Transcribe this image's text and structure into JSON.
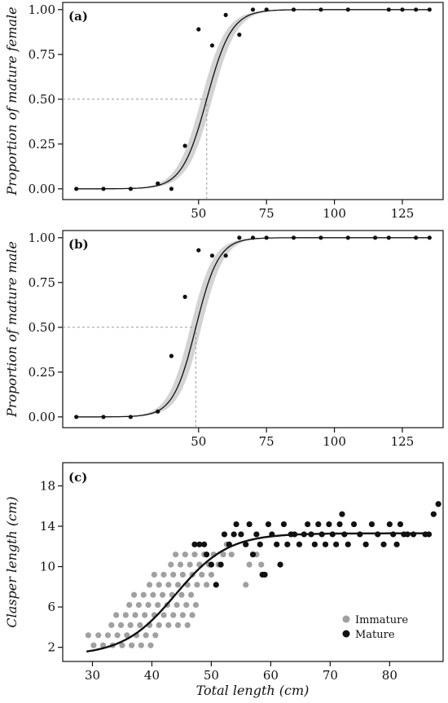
{
  "chart_data": [
    {
      "type": "scatter",
      "panel_label": "(a)",
      "ylabel": "Proportion of mature female",
      "xlabel": "",
      "xlim": [
        0,
        140
      ],
      "ylim": [
        -0.06,
        1.04
      ],
      "xticks": [
        50,
        75,
        100,
        125
      ],
      "yticks": [
        "0.00",
        "0.25",
        "0.50",
        "0.75",
        "1.00"
      ],
      "grid": false,
      "points": {
        "x": [
          5,
          15,
          25,
          35,
          40,
          45,
          50,
          55,
          60,
          65,
          70,
          75,
          85,
          95,
          105,
          120,
          125,
          130,
          135
        ],
        "y": [
          0,
          0,
          0,
          0.03,
          0,
          0.24,
          0.89,
          0.8,
          0.97,
          0.86,
          1,
          1,
          1,
          1,
          1,
          1,
          1,
          1,
          1
        ]
      },
      "fit_curve": {
        "model": "logistic",
        "L50": 53,
        "slope": 0.22
      },
      "confidence_band": {
        "lower_L50": 55,
        "upper_L50": 51
      },
      "reference": {
        "x": 53,
        "y": 0.5
      }
    },
    {
      "type": "scatter",
      "panel_label": "(b)",
      "ylabel": "Proportion of mature male",
      "xlabel": "",
      "xlim": [
        0,
        140
      ],
      "ylim": [
        -0.06,
        1.04
      ],
      "xticks": [
        50,
        75,
        100,
        125
      ],
      "yticks": [
        "0.00",
        "0.25",
        "0.50",
        "0.75",
        "1.00"
      ],
      "grid": false,
      "points": {
        "x": [
          5,
          15,
          25,
          35,
          40,
          45,
          50,
          55,
          60,
          65,
          70,
          75,
          85,
          95,
          105,
          115,
          120,
          130,
          135
        ],
        "y": [
          0,
          0,
          0,
          0.03,
          0.34,
          0.67,
          0.93,
          0.9,
          0.9,
          1,
          1,
          1,
          1,
          1,
          1,
          1,
          1,
          1,
          1
        ]
      },
      "fit_curve": {
        "model": "logistic",
        "L50": 49,
        "slope": 0.24
      },
      "confidence_band": {
        "lower_L50": 51,
        "upper_L50": 47
      },
      "reference": {
        "x": 49,
        "y": 0.5
      }
    },
    {
      "type": "scatter",
      "panel_label": "(c)",
      "ylabel": "Clasper length (cm)",
      "xlabel": "Total length (cm)",
      "xlim": [
        25,
        89
      ],
      "ylim": [
        0.6,
        20.3
      ],
      "xticks": [
        30,
        40,
        50,
        60,
        70,
        80
      ],
      "yticks": [
        "2",
        "6",
        "10",
        "14",
        "18"
      ],
      "grid": false,
      "legend": {
        "position": "bottom-right",
        "entries": [
          "Immature",
          "Mature"
        ]
      },
      "series": [
        {
          "name": "Immature",
          "color": "#a0a0a0",
          "points": [
            [
              29.3,
              3.2
            ],
            [
              30.2,
              2.2
            ],
            [
              31.0,
              3.2
            ],
            [
              31.8,
              2.2
            ],
            [
              32.6,
              3.2
            ],
            [
              33.4,
              2.2
            ],
            [
              34.2,
              3.2
            ],
            [
              35.0,
              2.2
            ],
            [
              35.8,
              3.2
            ],
            [
              36.6,
              2.2
            ],
            [
              37.4,
              3.2
            ],
            [
              38.2,
              2.2
            ],
            [
              39.0,
              3.2
            ],
            [
              39.8,
              2.2
            ],
            [
              40.6,
              3.2
            ],
            [
              33.2,
              4.2
            ],
            [
              34.0,
              5.2
            ],
            [
              34.8,
              4.2
            ],
            [
              35.6,
              5.2
            ],
            [
              36.4,
              4.2
            ],
            [
              37.2,
              5.2
            ],
            [
              38.0,
              4.2
            ],
            [
              38.8,
              5.2
            ],
            [
              39.6,
              4.2
            ],
            [
              40.4,
              5.2
            ],
            [
              41.2,
              4.2
            ],
            [
              42.0,
              5.2
            ],
            [
              42.8,
              4.2
            ],
            [
              43.6,
              5.2
            ],
            [
              44.4,
              4.2
            ],
            [
              45.2,
              5.2
            ],
            [
              46.0,
              4.2
            ],
            [
              46.8,
              5.2
            ],
            [
              36.2,
              6.2
            ],
            [
              37.0,
              7.2
            ],
            [
              37.8,
              6.2
            ],
            [
              38.6,
              7.2
            ],
            [
              39.4,
              6.2
            ],
            [
              40.2,
              7.2
            ],
            [
              41.0,
              6.2
            ],
            [
              41.8,
              7.2
            ],
            [
              42.6,
              6.2
            ],
            [
              43.4,
              7.2
            ],
            [
              44.2,
              6.2
            ],
            [
              45.0,
              7.2
            ],
            [
              45.8,
              6.2
            ],
            [
              46.6,
              7.2
            ],
            [
              47.4,
              6.2
            ],
            [
              39.6,
              8.2
            ],
            [
              40.4,
              9.2
            ],
            [
              41.2,
              8.2
            ],
            [
              42.0,
              9.2
            ],
            [
              42.8,
              8.2
            ],
            [
              43.6,
              9.2
            ],
            [
              44.4,
              8.2
            ],
            [
              45.2,
              9.2
            ],
            [
              46.0,
              8.2
            ],
            [
              46.8,
              9.2
            ],
            [
              47.6,
              8.2
            ],
            [
              48.4,
              9.2
            ],
            [
              49.2,
              8.2
            ],
            [
              50.0,
              9.2
            ],
            [
              43.2,
              10.2
            ],
            [
              44.0,
              11.2
            ],
            [
              44.8,
              10.2
            ],
            [
              45.6,
              11.2
            ],
            [
              46.4,
              10.2
            ],
            [
              47.2,
              11.2
            ],
            [
              48.0,
              10.2
            ],
            [
              48.8,
              11.2
            ],
            [
              49.6,
              10.2
            ],
            [
              50.4,
              11.2
            ],
            [
              51.2,
              10.2
            ],
            [
              52.0,
              11.2
            ],
            [
              52.6,
              12.2
            ],
            [
              53.4,
              11.2
            ],
            [
              55.8,
              8.2
            ],
            [
              56.4,
              10.2
            ],
            [
              57.6,
              11.2
            ],
            [
              58.4,
              10.2
            ]
          ]
        },
        {
          "name": "Mature",
          "color": "#111111",
          "points": [
            [
              47.2,
              12.2
            ],
            [
              48.0,
              12.2
            ],
            [
              48.8,
              12.2
            ],
            [
              49.2,
              11.2
            ],
            [
              50.0,
              10.2
            ],
            [
              50.8,
              8.2
            ],
            [
              51.6,
              10.2
            ],
            [
              52.2,
              13.2
            ],
            [
              53.0,
              12.2
            ],
            [
              53.8,
              13.2
            ],
            [
              54.2,
              14.2
            ],
            [
              55.0,
              13.2
            ],
            [
              55.8,
              12.2
            ],
            [
              56.4,
              14.2
            ],
            [
              57.0,
              11.2
            ],
            [
              57.6,
              13.2
            ],
            [
              58.2,
              12.2
            ],
            [
              58.6,
              9.2
            ],
            [
              59.0,
              9.2
            ],
            [
              59.6,
              14.2
            ],
            [
              60.2,
              13.2
            ],
            [
              61.0,
              12.2
            ],
            [
              61.6,
              10.2
            ],
            [
              62.2,
              14.2
            ],
            [
              62.8,
              12.2
            ],
            [
              63.4,
              13.2
            ],
            [
              64.0,
              13.2
            ],
            [
              64.8,
              12.2
            ],
            [
              65.6,
              13.2
            ],
            [
              66.2,
              14.2
            ],
            [
              66.8,
              13.2
            ],
            [
              67.4,
              12.2
            ],
            [
              68.0,
              14.2
            ],
            [
              68.6,
              13.2
            ],
            [
              69.2,
              12.2
            ],
            [
              69.8,
              14.2
            ],
            [
              70.4,
              13.2
            ],
            [
              71.0,
              12.2
            ],
            [
              71.6,
              14.2
            ],
            [
              72.0,
              15.2
            ],
            [
              72.4,
              13.2
            ],
            [
              73.0,
              12.2
            ],
            [
              74.0,
              14.2
            ],
            [
              75.0,
              13.2
            ],
            [
              76.0,
              12.2
            ],
            [
              77.0,
              14.2
            ],
            [
              78.0,
              13.2
            ],
            [
              79.0,
              12.2
            ],
            [
              80.0,
              14.2
            ],
            [
              80.6,
              13.2
            ],
            [
              81.2,
              12.2
            ],
            [
              81.8,
              14.2
            ],
            [
              82.4,
              13.2
            ],
            [
              83.0,
              13.2
            ],
            [
              84.0,
              13.2
            ],
            [
              86.0,
              13.2
            ],
            [
              86.6,
              13.2
            ],
            [
              87.4,
              15.2
            ],
            [
              88.2,
              16.2
            ]
          ]
        }
      ],
      "fit_curve": {
        "model": "logistic",
        "lower": 1.2,
        "upper": 13.3,
        "midpoint": 44,
        "scale": 4.4,
        "x_range": [
          29,
          87
        ]
      }
    }
  ]
}
